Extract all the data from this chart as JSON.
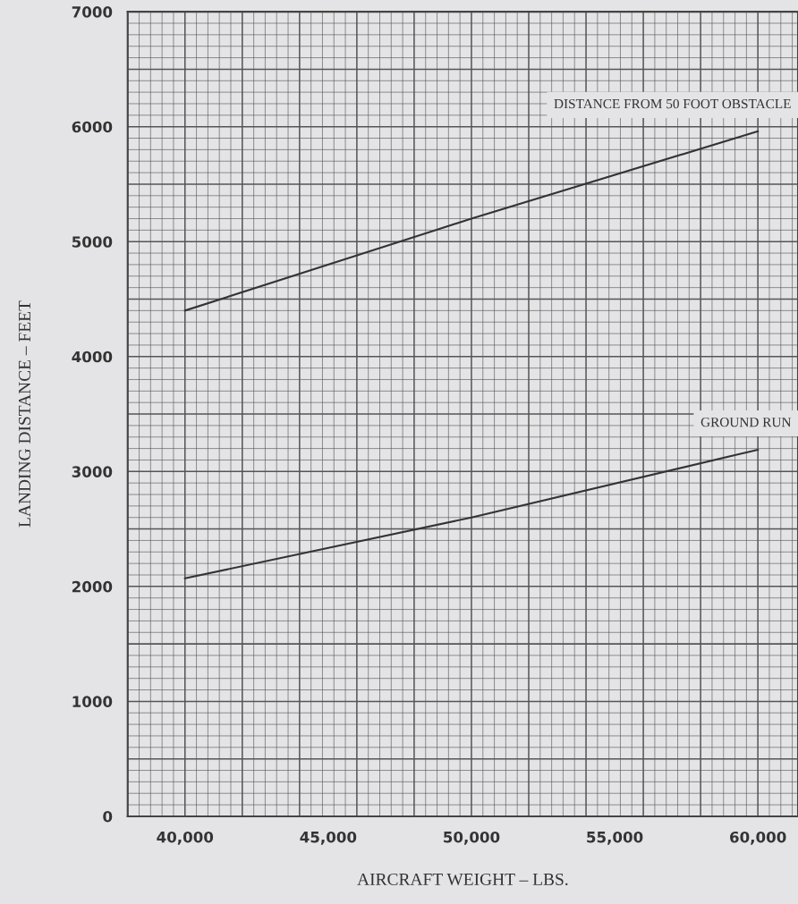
{
  "chart_data": {
    "type": "line",
    "xlabel": "AIRCRAFT WEIGHT – LBS.",
    "ylabel": "LANDING DISTANCE – FEET",
    "x": [
      40000,
      50000,
      60000
    ],
    "series": [
      {
        "name": "DISTANCE FROM 50 FOOT OBSTACLE",
        "color": "#333333",
        "values": [
          4400,
          5200,
          5960
        ]
      },
      {
        "name": "GROUND RUN",
        "color": "#333333",
        "values": [
          2070,
          2600,
          3190
        ]
      }
    ],
    "xlim": [
      38000,
      61400
    ],
    "ylim": [
      0,
      7000
    ],
    "xticks": [
      {
        "value": 40000,
        "label": "40,000"
      },
      {
        "value": 45000,
        "label": "45,000"
      },
      {
        "value": 50000,
        "label": "50,000"
      },
      {
        "value": 55000,
        "label": "55,000"
      },
      {
        "value": 60000,
        "label": "60,000"
      }
    ],
    "yticks": [
      0,
      1000,
      2000,
      3000,
      4000,
      5000,
      6000,
      7000
    ],
    "grid": true,
    "marker": "none",
    "line_style": "solid",
    "legend": false
  }
}
